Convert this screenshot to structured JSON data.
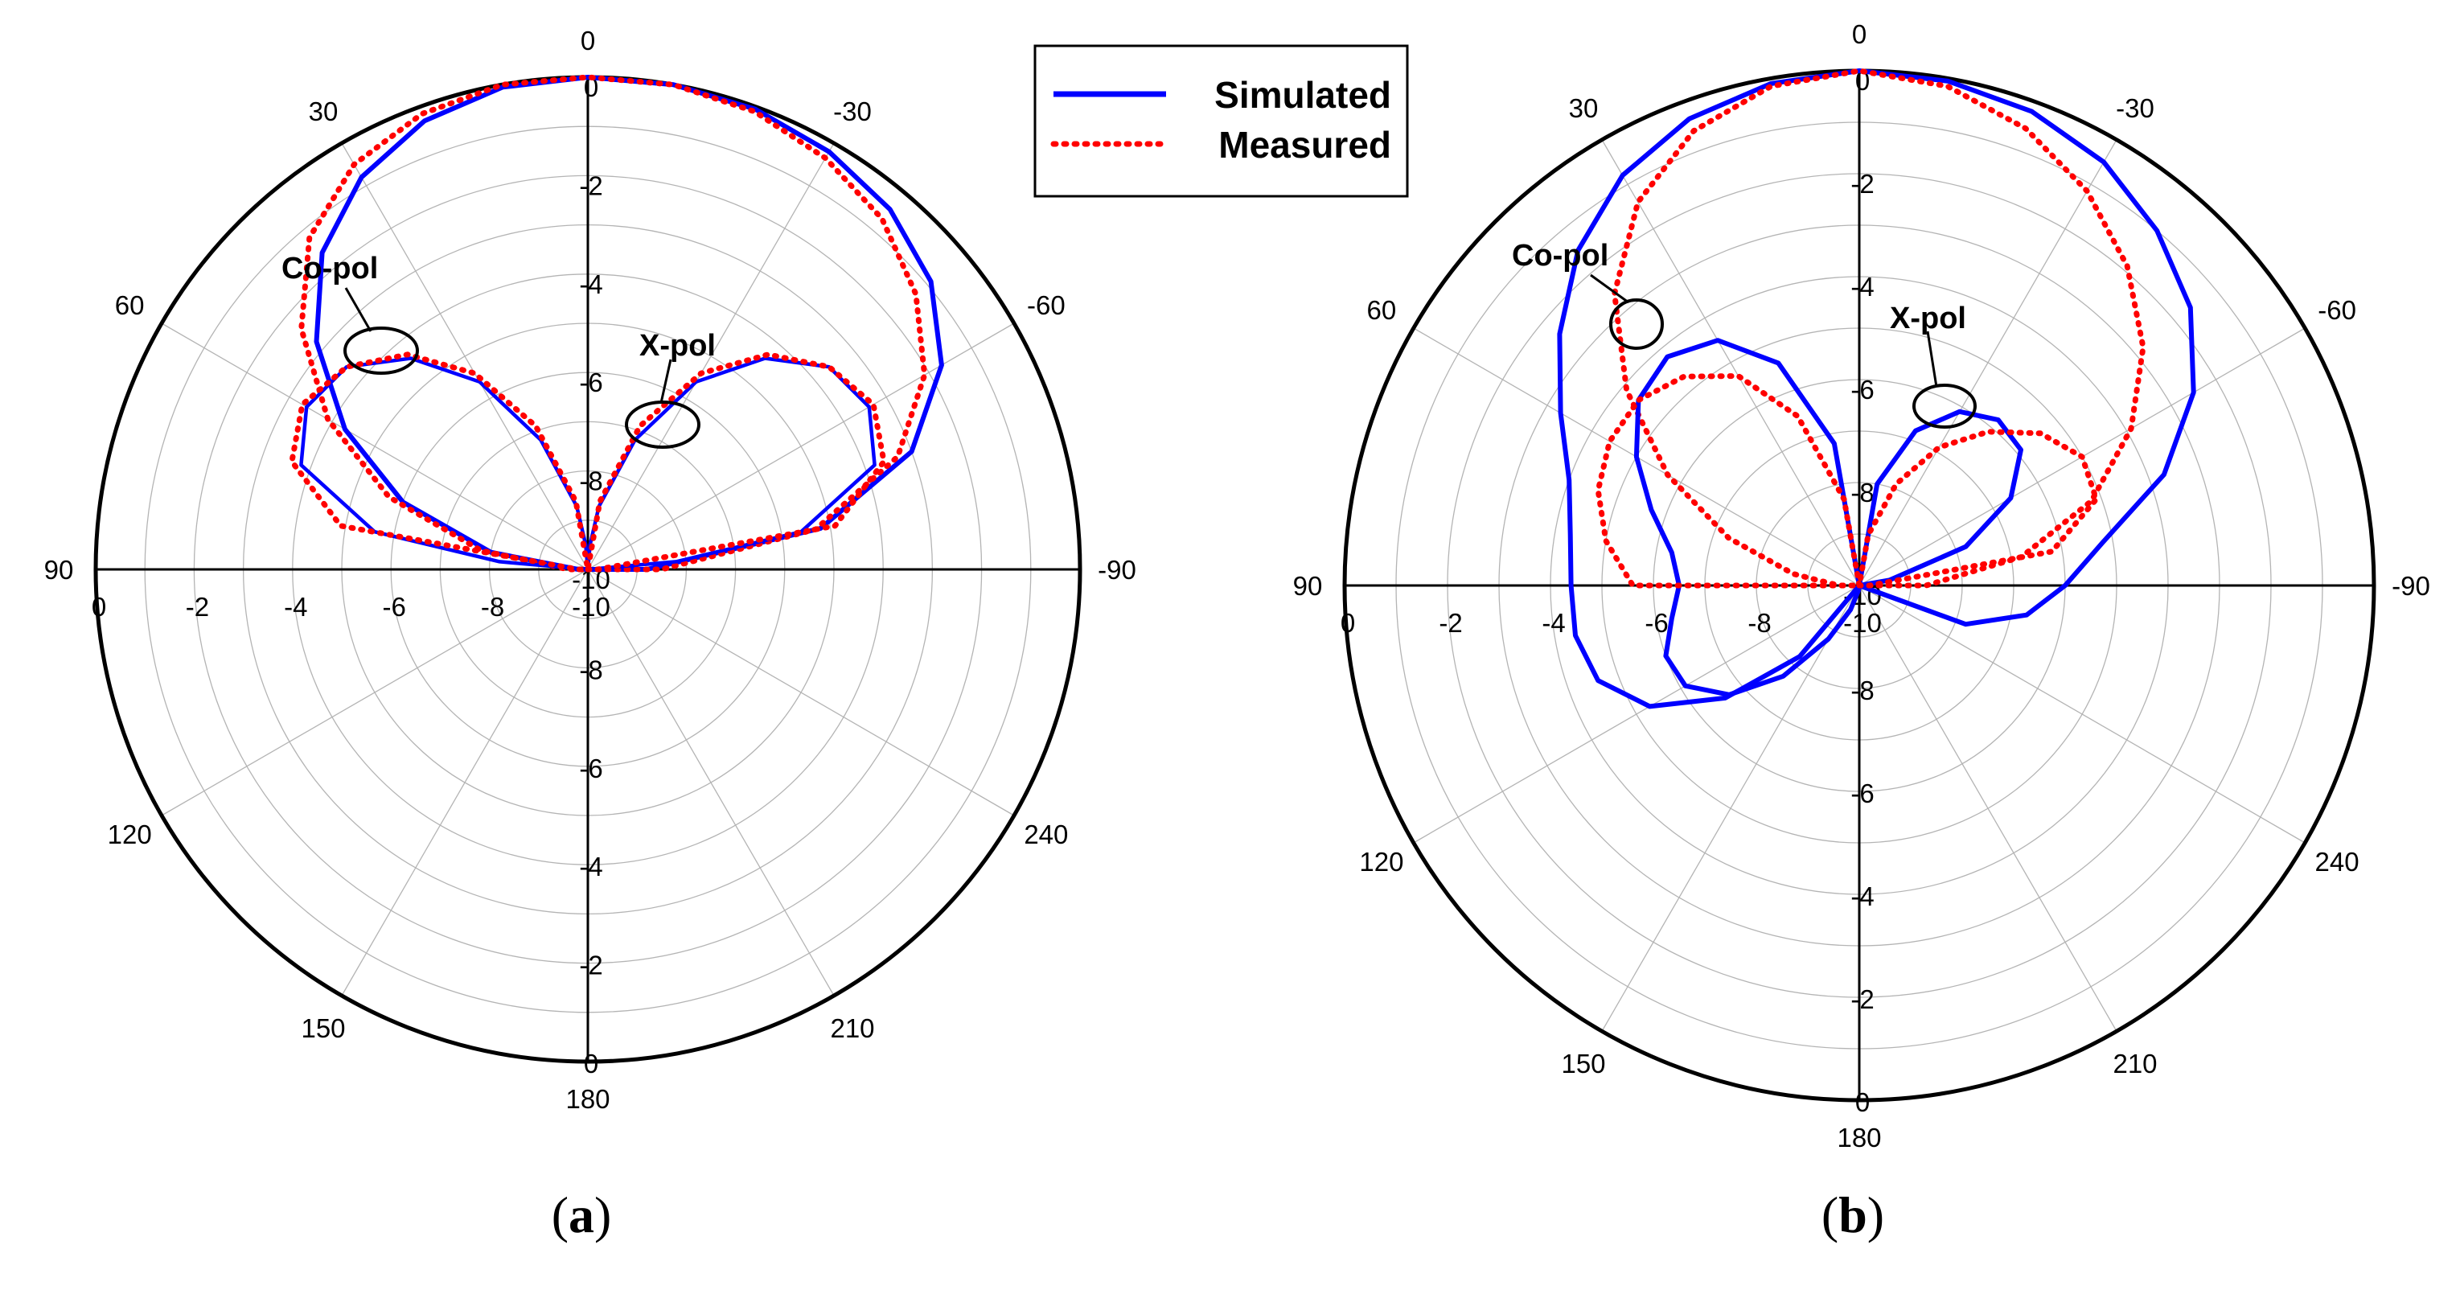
{
  "chart_data": [
    {
      "type": "polar-line",
      "panel_label": "a",
      "r_scale": {
        "min": -10,
        "max": 0,
        "unit": "dB"
      },
      "radial_tick_labels": [
        "0",
        "-2",
        "-4",
        "-6",
        "-8",
        "-10"
      ],
      "angle_labels": [
        {
          "text": "0",
          "deg": 0
        },
        {
          "text": "-30",
          "deg": -30
        },
        {
          "text": "-60",
          "deg": -60
        },
        {
          "text": "-90",
          "deg": -90
        },
        {
          "text": "240",
          "deg": -120
        },
        {
          "text": "210",
          "deg": -150
        },
        {
          "text": "180",
          "deg": 180
        },
        {
          "text": "150",
          "deg": 150
        },
        {
          "text": "120",
          "deg": 120
        },
        {
          "text": "90",
          "deg": 90
        },
        {
          "text": "60",
          "deg": 60
        },
        {
          "text": "30",
          "deg": 30
        }
      ],
      "annotations": [
        {
          "text": "Co-pol",
          "target": "Co-pol"
        },
        {
          "text": "X-pol",
          "target": "X-pol"
        }
      ],
      "series": [
        {
          "name": "Simulated",
          "component": "Co-pol",
          "color": "#0000FF",
          "style": "solid",
          "theta": [
            -90,
            -80,
            -70,
            -60,
            -50,
            -40,
            -30,
            -20,
            -10,
            0,
            10,
            20,
            30,
            40,
            50,
            60,
            70,
            80,
            90
          ],
          "r": [
            -8.8,
            -5.2,
            -3.0,
            -1.7,
            -0.9,
            -0.45,
            -0.2,
            -0.05,
            0,
            0,
            -0.05,
            -0.3,
            -0.8,
            -1.6,
            -2.8,
            -4.3,
            -6.0,
            -8.0,
            -9.8
          ]
        },
        {
          "name": "Measured",
          "component": "Co-pol",
          "color": "#FF0000",
          "style": "dotted",
          "theta": [
            -90,
            -80,
            -70,
            -60,
            -50,
            -40,
            -30,
            -20,
            -10,
            0,
            10,
            20,
            30,
            40,
            50,
            60,
            70,
            80,
            90
          ],
          "r": [
            -8.5,
            -5.3,
            -3.3,
            -2.1,
            -1.3,
            -0.7,
            -0.35,
            -0.1,
            0,
            0,
            0,
            -0.15,
            -0.5,
            -1.2,
            -2.4,
            -3.9,
            -5.7,
            -7.8,
            -9.6
          ]
        },
        {
          "name": "Simulated",
          "component": "X-pol",
          "color": "#0000FF",
          "style": "solid",
          "theta": [
            -90,
            -85,
            -80,
            -70,
            -60,
            -50,
            -40,
            -30,
            -20,
            -10,
            -5,
            0,
            5,
            10,
            20,
            30,
            40,
            50,
            60,
            70,
            80,
            85,
            90
          ],
          "r": [
            -10,
            -8.2,
            -5.6,
            -3.8,
            -3.4,
            -3.6,
            -4.4,
            -5.6,
            -7.2,
            -8.7,
            -9.5,
            -10,
            -9.5,
            -8.7,
            -7.2,
            -5.6,
            -4.4,
            -3.6,
            -3.4,
            -3.8,
            -5.6,
            -8.2,
            -10
          ]
        },
        {
          "name": "Measured",
          "component": "X-pol",
          "color": "#FF0000",
          "style": "dotted",
          "theta": [
            -90,
            -80,
            -70,
            -60,
            -50,
            -40,
            -30,
            -20,
            -10,
            0,
            10,
            20,
            30,
            40,
            50,
            60,
            70,
            80,
            90
          ],
          "r": [
            -9.8,
            -4.9,
            -3.6,
            -3.3,
            -3.6,
            -4.3,
            -5.4,
            -6.9,
            -8.6,
            -10,
            -8.6,
            -6.9,
            -5.4,
            -4.3,
            -3.6,
            -3.3,
            -3.6,
            -4.9,
            -9.8
          ]
        }
      ]
    },
    {
      "type": "polar-line",
      "panel_label": "b",
      "r_scale": {
        "min": -10,
        "max": 0,
        "unit": "dB"
      },
      "radial_tick_labels": [
        "0",
        "-2",
        "-4",
        "-6",
        "-8",
        "-10"
      ],
      "angle_labels": [
        {
          "text": "0",
          "deg": 0
        },
        {
          "text": "-30",
          "deg": -30
        },
        {
          "text": "-60",
          "deg": -60
        },
        {
          "text": "-90",
          "deg": -90
        },
        {
          "text": "240",
          "deg": -120
        },
        {
          "text": "210",
          "deg": -150
        },
        {
          "text": "180",
          "deg": 180
        },
        {
          "text": "150",
          "deg": 150
        },
        {
          "text": "120",
          "deg": 120
        },
        {
          "text": "90",
          "deg": 90
        },
        {
          "text": "60",
          "deg": 60
        },
        {
          "text": "30",
          "deg": 30
        }
      ],
      "annotations": [
        {
          "text": "Co-pol",
          "target": "Co-pol"
        },
        {
          "text": "X-pol",
          "target": "X-pol"
        }
      ],
      "series": [
        {
          "name": "Simulated",
          "component": "Co-pol",
          "color": "#0000FF",
          "style": "solid",
          "theta": [
            -120,
            -110,
            -100,
            -90,
            -80,
            -70,
            -60,
            -50,
            -40,
            -30,
            -20,
            -10,
            0,
            10,
            20,
            30,
            40,
            50,
            60,
            70,
            80,
            90,
            100,
            110,
            120,
            130,
            140,
            150
          ],
          "r": [
            -10,
            -7.8,
            -6.7,
            -6.0,
            -5.2,
            -3.7,
            -2.5,
            -1.6,
            -1.0,
            -0.5,
            -0.2,
            -0.05,
            0,
            -0.1,
            -0.35,
            -0.8,
            -1.5,
            -2.4,
            -3.3,
            -4.0,
            -4.3,
            -4.4,
            -4.4,
            -4.6,
            -5.3,
            -6.6,
            -8.2,
            -10
          ]
        },
        {
          "name": "Measured",
          "component": "Co-pol",
          "color": "#FF0000",
          "style": "dotted",
          "theta": [
            -90,
            -80,
            -70,
            -60,
            -50,
            -40,
            -30,
            -20,
            -10,
            0,
            10,
            20,
            30,
            40,
            50,
            60,
            70,
            80,
            90
          ],
          "r": [
            -8.7,
            -6.8,
            -5.2,
            -3.9,
            -2.8,
            -1.9,
            -1.15,
            -0.55,
            -0.15,
            0,
            -0.15,
            -0.6,
            -1.4,
            -2.6,
            -4.1,
            -5.7,
            -7.3,
            -8.7,
            -9.6
          ]
        },
        {
          "name": "Simulated",
          "component": "X-pol",
          "color": "#0000FF",
          "style": "solid",
          "theta": [
            -90,
            -80,
            -70,
            -60,
            -50,
            -40,
            -30,
            -20,
            -10,
            0,
            10,
            20,
            30,
            40,
            50,
            60,
            70,
            80,
            90,
            100,
            110,
            120,
            130,
            140,
            150,
            160,
            170,
            180
          ],
          "r": [
            -10,
            -9.4,
            -7.8,
            -6.6,
            -5.9,
            -5.8,
            -6.1,
            -6.8,
            -8.0,
            -10,
            -7.2,
            -5.4,
            -4.5,
            -4.2,
            -4.4,
            -5.0,
            -5.7,
            -6.3,
            -6.5,
            -6.3,
            -6.0,
            -6.1,
            -6.7,
            -7.7,
            -8.8,
            -9.5,
            -9.9,
            -10
          ]
        },
        {
          "name": "Measured",
          "component": "X-pol",
          "color": "#FF0000",
          "style": "dotted",
          "theta": [
            -90,
            -80,
            -70,
            -60,
            -50,
            -40,
            -30,
            -20,
            -10,
            0,
            10,
            20,
            30,
            40,
            50,
            60,
            70,
            80,
            90
          ],
          "r": [
            -9.8,
            -6.2,
            -5.1,
            -5.0,
            -5.4,
            -6.1,
            -6.9,
            -7.9,
            -9.0,
            -10,
            -8.3,
            -6.5,
            -5.3,
            -4.7,
            -4.4,
            -4.4,
            -4.6,
            -5.0,
            -5.6
          ]
        }
      ]
    }
  ],
  "legend": {
    "items": [
      {
        "label": "Simulated",
        "color": "#0000FF",
        "style": "solid"
      },
      {
        "label": "Measured",
        "color": "#FF0000",
        "style": "dotted"
      }
    ]
  },
  "colors": {
    "simulated": "#0000FF",
    "measured": "#FF0000",
    "grid": "#B4B4B4",
    "frame": "#000000"
  }
}
